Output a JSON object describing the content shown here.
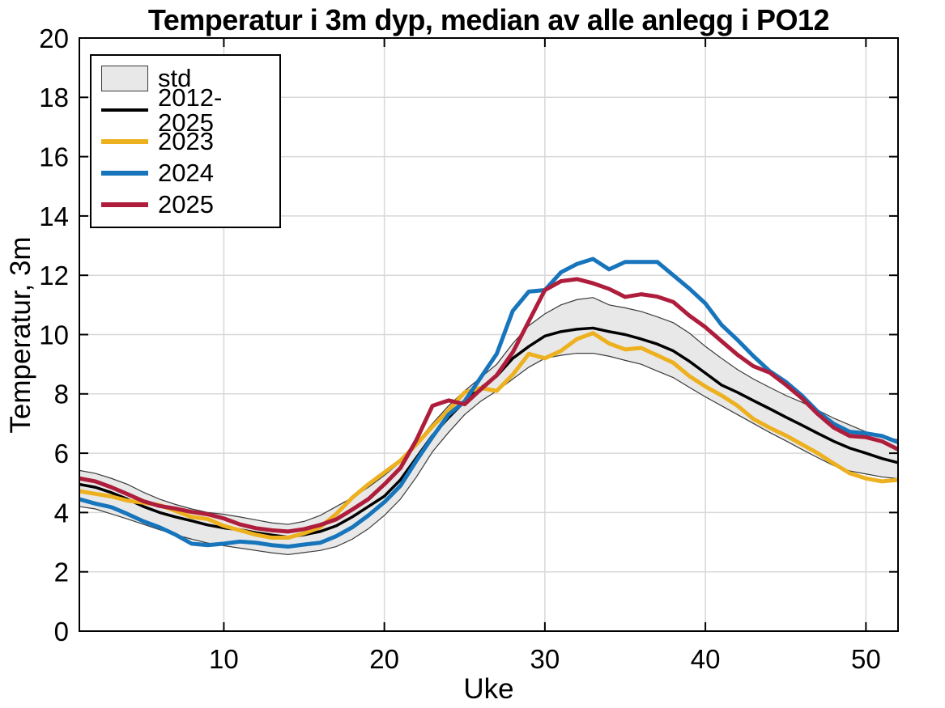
{
  "chart_data": {
    "type": "line",
    "title": "Temperatur i 3m dyp, median av alle anlegg i PO12",
    "xlabel": "Uke",
    "ylabel": "Temperatur, 3m",
    "xlim": [
      1,
      52
    ],
    "ylim": [
      0,
      20
    ],
    "xticks": [
      10,
      20,
      30,
      40,
      50
    ],
    "yticks": [
      0,
      2,
      4,
      6,
      8,
      10,
      12,
      14,
      16,
      18,
      20
    ],
    "grid": true,
    "legend_position": "upper-left",
    "weeks": [
      1,
      2,
      3,
      4,
      5,
      6,
      7,
      8,
      9,
      10,
      11,
      12,
      13,
      14,
      15,
      16,
      17,
      18,
      19,
      20,
      21,
      22,
      23,
      24,
      25,
      26,
      27,
      28,
      29,
      30,
      31,
      32,
      33,
      34,
      35,
      36,
      37,
      38,
      39,
      40,
      41,
      42,
      43,
      44,
      45,
      46,
      47,
      48,
      49,
      50,
      51,
      52
    ],
    "band": {
      "name": "std",
      "fill": "#e8e8e8",
      "edge": "#3a3a3a",
      "upper": [
        5.42,
        5.32,
        5.15,
        4.95,
        4.68,
        4.45,
        4.27,
        4.12,
        4.0,
        3.94,
        3.85,
        3.75,
        3.65,
        3.6,
        3.7,
        3.9,
        4.2,
        4.5,
        4.85,
        5.25,
        5.7,
        6.35,
        7.0,
        7.6,
        8.1,
        8.55,
        9.0,
        9.7,
        10.3,
        10.7,
        11.0,
        11.18,
        11.25,
        11.0,
        10.9,
        10.78,
        10.6,
        10.4,
        10.05,
        9.6,
        9.2,
        8.82,
        8.5,
        8.22,
        7.95,
        7.72,
        7.45,
        7.18,
        6.95,
        6.72,
        6.57,
        6.45
      ],
      "lower": [
        4.2,
        4.12,
        3.95,
        3.78,
        3.6,
        3.42,
        3.25,
        3.1,
        2.97,
        2.88,
        2.8,
        2.72,
        2.64,
        2.58,
        2.65,
        2.72,
        2.85,
        3.1,
        3.45,
        3.9,
        4.45,
        5.2,
        6.05,
        6.7,
        7.3,
        7.75,
        8.1,
        8.5,
        8.9,
        9.2,
        9.3,
        9.37,
        9.37,
        9.27,
        9.13,
        9.0,
        8.77,
        8.55,
        8.22,
        7.9,
        7.6,
        7.3,
        7.0,
        6.7,
        6.42,
        6.13,
        5.85,
        5.58,
        5.4,
        5.3,
        5.2,
        5.14
      ]
    },
    "series": [
      {
        "name": "2012-2025",
        "color": "#000000",
        "width": 3.5,
        "values": [
          4.95,
          4.85,
          4.67,
          4.45,
          4.2,
          4.0,
          3.85,
          3.72,
          3.58,
          3.48,
          3.42,
          3.32,
          3.24,
          3.17,
          3.25,
          3.36,
          3.55,
          3.85,
          4.2,
          4.55,
          5.1,
          5.85,
          6.6,
          7.2,
          7.75,
          8.2,
          8.6,
          9.2,
          9.6,
          9.95,
          10.1,
          10.18,
          10.22,
          10.1,
          10.0,
          9.85,
          9.68,
          9.45,
          9.1,
          8.7,
          8.3,
          8.05,
          7.77,
          7.5,
          7.22,
          6.95,
          6.67,
          6.4,
          6.17,
          6.0,
          5.82,
          5.68
        ]
      },
      {
        "name": "2023",
        "color": "#EDB120",
        "width": 5,
        "values": [
          4.72,
          4.63,
          4.54,
          4.4,
          4.33,
          4.25,
          4.05,
          3.85,
          3.78,
          3.55,
          3.4,
          3.25,
          3.15,
          3.15,
          3.3,
          3.5,
          3.95,
          4.5,
          4.95,
          5.35,
          5.75,
          6.3,
          6.9,
          7.45,
          8.05,
          8.2,
          8.1,
          8.65,
          9.35,
          9.2,
          9.45,
          9.85,
          10.05,
          9.7,
          9.5,
          9.55,
          9.3,
          9.05,
          8.6,
          8.25,
          7.95,
          7.6,
          7.15,
          6.86,
          6.6,
          6.3,
          6.0,
          5.65,
          5.32,
          5.15,
          5.05,
          5.1
        ]
      },
      {
        "name": "2024",
        "color": "#1775BC",
        "width": 5,
        "values": [
          4.45,
          4.3,
          4.18,
          3.95,
          3.7,
          3.5,
          3.25,
          2.95,
          2.9,
          2.95,
          3.02,
          2.98,
          2.9,
          2.85,
          2.92,
          2.98,
          3.2,
          3.5,
          3.9,
          4.35,
          4.9,
          5.75,
          6.55,
          7.3,
          7.75,
          8.55,
          9.35,
          10.8,
          11.45,
          11.5,
          12.1,
          12.38,
          12.55,
          12.2,
          12.45,
          12.45,
          12.45,
          12.0,
          11.55,
          11.05,
          10.33,
          9.82,
          9.27,
          8.77,
          8.41,
          7.95,
          7.4,
          6.99,
          6.72,
          6.67,
          6.58,
          6.37
        ]
      },
      {
        "name": "2025",
        "color": "#AE1E3C",
        "width": 5,
        "values": [
          5.15,
          5.05,
          4.85,
          4.62,
          4.38,
          4.22,
          4.13,
          4.02,
          3.94,
          3.8,
          3.6,
          3.47,
          3.4,
          3.36,
          3.44,
          3.58,
          3.77,
          4.1,
          4.45,
          4.95,
          5.5,
          6.45,
          7.6,
          7.78,
          7.65,
          8.15,
          8.63,
          9.4,
          10.45,
          11.5,
          11.8,
          11.87,
          11.73,
          11.54,
          11.27,
          11.36,
          11.28,
          11.1,
          10.64,
          10.25,
          9.78,
          9.32,
          8.93,
          8.72,
          8.31,
          7.86,
          7.32,
          6.86,
          6.58,
          6.54,
          6.4,
          6.13
        ]
      }
    ],
    "legend": {
      "items": [
        {
          "label": "std",
          "swatch": "patch",
          "fill": "#e8e8e8",
          "edge": "#3a3a3a"
        },
        {
          "label": "2012-2025",
          "swatch": "line",
          "color": "#000000",
          "thickness": 4
        },
        {
          "label": "2023",
          "swatch": "line",
          "color": "#EDB120",
          "thickness": 6
        },
        {
          "label": "2024",
          "swatch": "line",
          "color": "#1775BC",
          "thickness": 6
        },
        {
          "label": "2025",
          "swatch": "line",
          "color": "#AE1E3C",
          "thickness": 6
        }
      ]
    },
    "colors": {
      "grid": "#d8d8d8",
      "axis": "#000000",
      "background": "#ffffff"
    }
  }
}
